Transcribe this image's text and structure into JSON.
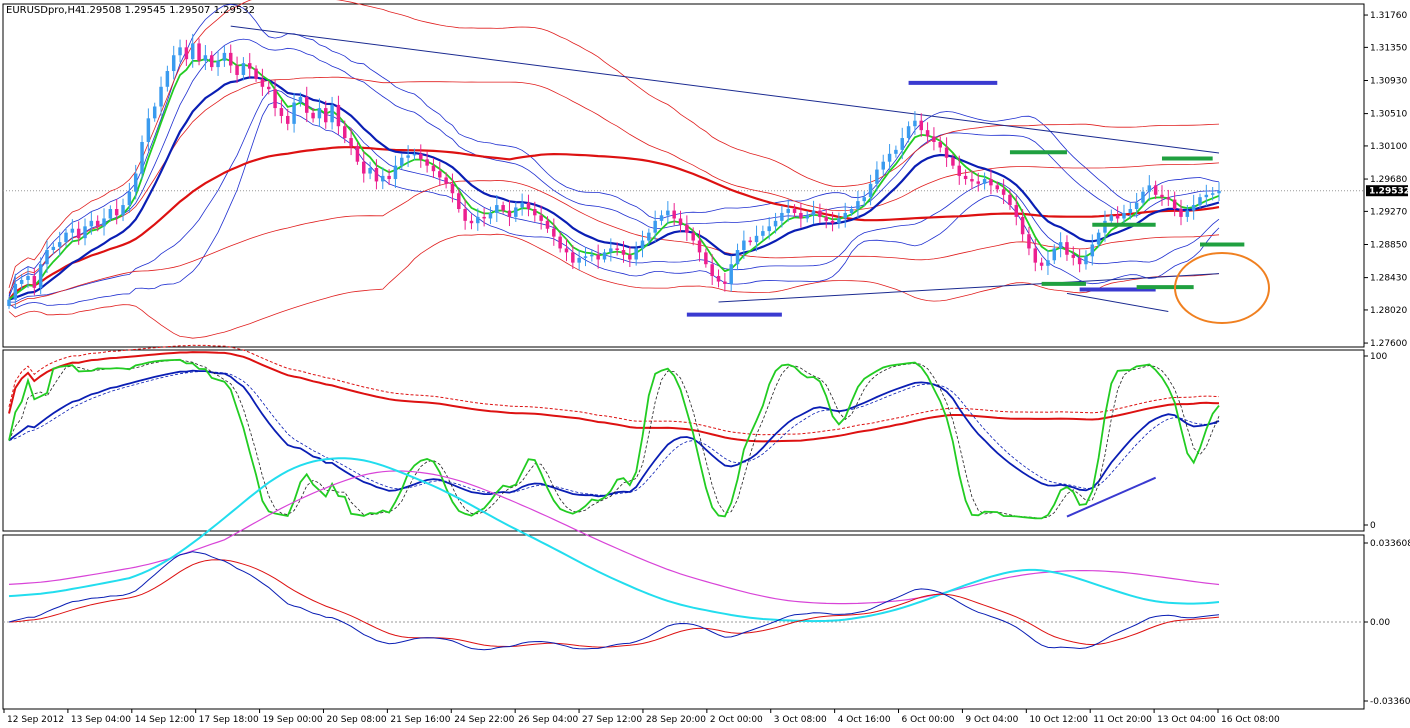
{
  "header": {
    "symbol": "EURUSDpro,H4",
    "ohlc": "1.29508 1.29545 1.29507 1.29532"
  },
  "price_axis": {
    "ticks": [
      "1.31760",
      "1.31350",
      "1.30930",
      "1.30510",
      "1.30100",
      "1.29680",
      "1.29270",
      "1.28850",
      "1.28430",
      "1.28020",
      "1.27600"
    ],
    "current_price": "1.29532"
  },
  "stoch_axis": {
    "ticks": [
      "100",
      "0"
    ]
  },
  "macd_axis": {
    "ticks": [
      "0.033608",
      "0.00",
      "-0.033608"
    ]
  },
  "time_axis": {
    "labels": [
      "12 Sep 2012",
      "13 Sep 04:00",
      "14 Sep 12:00",
      "17 Sep 18:00",
      "19 Sep 00:00",
      "20 Sep 08:00",
      "21 Sep 16:00",
      "24 Sep 22:00",
      "26 Sep 04:00",
      "27 Sep 12:00",
      "28 Sep 20:00",
      "2 Oct 00:00",
      "3 Oct 08:00",
      "4 Oct 16:00",
      "6 Oct 00:00",
      "9 Oct 04:00",
      "10 Oct 12:00",
      "11 Oct 20:00",
      "13 Oct 04:00",
      "16 Oct 08:00"
    ]
  },
  "colors": {
    "bull": "#3a9bef",
    "bear": "#ec1f8f",
    "ema_fast": "#22cc22",
    "ema_mid": "#0a1eb4",
    "ema_slow": "#dd1111",
    "band_blue": "#1f2fd0",
    "band_red": "#e01e1e",
    "trend": "#1a2a90",
    "level_blue": "#3a3ad0",
    "level_green": "#20a040",
    "circle": "#f08020",
    "macd_cyan": "#22ddee",
    "macd_magenta": "#d844d8"
  },
  "chart_data": [
    {
      "type": "candlestick",
      "y_range": [
        1.2755,
        1.319
      ],
      "current_price": 1.29532,
      "closes": [
        1.2815,
        1.2835,
        1.284,
        1.2845,
        1.283,
        1.286,
        1.2878,
        1.2882,
        1.2888,
        1.29,
        1.2905,
        1.2893,
        1.2908,
        1.2915,
        1.2908,
        1.2918,
        1.293,
        1.2922,
        1.2935,
        1.2952,
        1.2975,
        1.3015,
        1.3045,
        1.306,
        1.3085,
        1.3105,
        1.3125,
        1.3135,
        1.312,
        1.314,
        1.3118,
        1.3125,
        1.311,
        1.3118,
        1.3128,
        1.3112,
        1.31,
        1.3115,
        1.3108,
        1.3095,
        1.3085,
        1.3082,
        1.3058,
        1.3048,
        1.3038,
        1.3065,
        1.3072,
        1.3052,
        1.3045,
        1.3058,
        1.304,
        1.3062,
        1.3035,
        1.302,
        1.301,
        1.299,
        1.2975,
        1.2982,
        1.2965,
        1.2972,
        1.2968,
        1.2985,
        1.2995,
        1.2998,
        1.3,
        1.2993,
        1.2985,
        1.2978,
        1.297,
        1.2962,
        1.295,
        1.293,
        1.2915,
        1.2912,
        1.292,
        1.2918,
        1.2925,
        1.2935,
        1.2928,
        1.292,
        1.2932,
        1.2938,
        1.293,
        1.2922,
        1.2915,
        1.2905,
        1.2895,
        1.288,
        1.2875,
        1.2862,
        1.2868,
        1.287,
        1.2872,
        1.2866,
        1.2875,
        1.288,
        1.2878,
        1.2872,
        1.2866,
        1.288,
        1.289,
        1.29,
        1.2915,
        1.2922,
        1.2928,
        1.2918,
        1.291,
        1.29,
        1.289,
        1.2875,
        1.286,
        1.2845,
        1.2838,
        1.2835,
        1.286,
        1.2878,
        1.289,
        1.2888,
        1.2896,
        1.2902,
        1.2908,
        1.2915,
        1.2925,
        1.293,
        1.2925,
        1.2918,
        1.2922,
        1.2928,
        1.292,
        1.2915,
        1.2912,
        1.2918,
        1.2925,
        1.293,
        1.294,
        1.2945,
        1.2962,
        1.298,
        1.299,
        1.3,
        1.3005,
        1.302,
        1.3035,
        1.3042,
        1.303,
        1.3022,
        1.3015,
        1.3008,
        1.2995,
        1.2985,
        1.2972,
        1.2968,
        1.2965,
        1.2962,
        1.2968,
        1.296,
        1.2955,
        1.2948,
        1.2935,
        1.292,
        1.2898,
        1.288,
        1.2862,
        1.2858,
        1.2865,
        1.288,
        1.2888,
        1.2872,
        1.2868,
        1.286,
        1.287,
        1.2885,
        1.29,
        1.2915,
        1.2922,
        1.2918,
        1.2925,
        1.293,
        1.2938,
        1.2952,
        1.296,
        1.2948,
        1.2945,
        1.2942,
        1.293,
        1.292,
        1.2928,
        1.2935,
        1.2945,
        1.2948,
        1.295,
        1.2953
      ],
      "bands_blue": [
        "upper-outer",
        "upper-inner",
        "lower-inner",
        "lower-outer"
      ],
      "annotations": [
        "resistance trend line",
        "support trend line",
        "horizontal level markers",
        "highlight circle"
      ]
    },
    {
      "type": "line",
      "name": "stochastic",
      "y_range": [
        0,
        100
      ],
      "series_shapes": [
        "green %K",
        "dashed %D",
        "blue slow",
        "red slow",
        "dashed red"
      ]
    },
    {
      "type": "line",
      "name": "macd",
      "y_range": [
        -0.033608,
        0.033608
      ],
      "series_shapes": [
        "cyan",
        "magenta",
        "blue",
        "red"
      ]
    }
  ]
}
